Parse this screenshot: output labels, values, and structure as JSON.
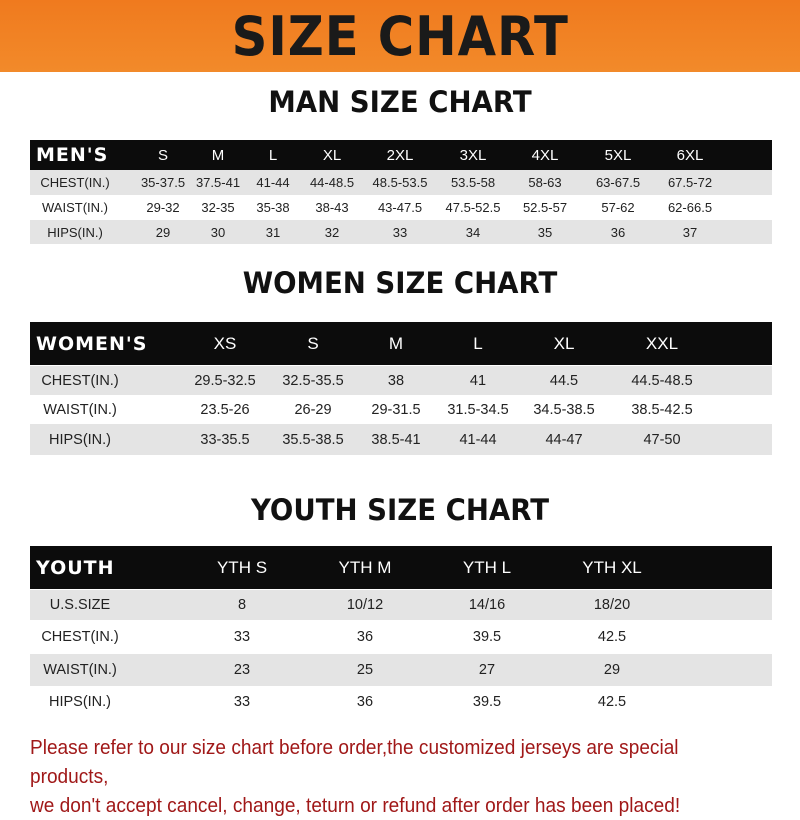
{
  "banner_title": "SIZE CHART",
  "tables": [
    {
      "title": "MAN SIZE CHART",
      "header": [
        "MEN'S",
        "S",
        "M",
        "L",
        "XL",
        "2XL",
        "3XL",
        "4XL",
        "5XL",
        "6XL"
      ],
      "rows": [
        [
          "CHEST(IN.)",
          "35-37.5",
          "37.5-41",
          "41-44",
          "44-48.5",
          "48.5-53.5",
          "53.5-58",
          "58-63",
          "63-67.5",
          "67.5-72"
        ],
        [
          "WAIST(IN.)",
          "29-32",
          "32-35",
          "35-38",
          "38-43",
          "43-47.5",
          "47.5-52.5",
          "52.5-57",
          "57-62",
          "62-66.5"
        ],
        [
          "HIPS(IN.)",
          "29",
          "30",
          "31",
          "32",
          "33",
          "34",
          "35",
          "36",
          "37"
        ]
      ]
    },
    {
      "title": "WOMEN SIZE CHART",
      "header": [
        "WOMEN'S",
        "XS",
        "S",
        "M",
        "L",
        "XL",
        "XXL"
      ],
      "rows": [
        [
          "CHEST(IN.)",
          "29.5-32.5",
          "32.5-35.5",
          "38",
          "41",
          "44.5",
          "44.5-48.5"
        ],
        [
          "WAIST(IN.)",
          "23.5-26",
          "26-29",
          "29-31.5",
          "31.5-34.5",
          "34.5-38.5",
          "38.5-42.5"
        ],
        [
          "HIPS(IN.)",
          "33-35.5",
          "35.5-38.5",
          "38.5-41",
          "41-44",
          "44-47",
          "47-50"
        ]
      ]
    },
    {
      "title": "YOUTH SIZE CHART",
      "header": [
        "YOUTH",
        "YTH S",
        "YTH M",
        "YTH L",
        "YTH XL"
      ],
      "rows": [
        [
          "U.S.SIZE",
          "8",
          "10/12",
          "14/16",
          "18/20"
        ],
        [
          "CHEST(IN.)",
          "33",
          "36",
          "39.5",
          "42.5"
        ],
        [
          "WAIST(IN.)",
          "23",
          "25",
          "27",
          "29"
        ],
        [
          "HIPS(IN.)",
          "33",
          "36",
          "39.5",
          "42.5"
        ]
      ]
    }
  ],
  "note_line1": "Please refer to our size chart before order,the customized jerseys are special products,",
  "note_line2": "we don't accept cancel, change, teturn or refund after order has been placed!",
  "colors": {
    "banner": "#f07a1e",
    "header_row": "#0c0c0c",
    "stripe": "#e4e4e4",
    "note": "#a01818"
  }
}
